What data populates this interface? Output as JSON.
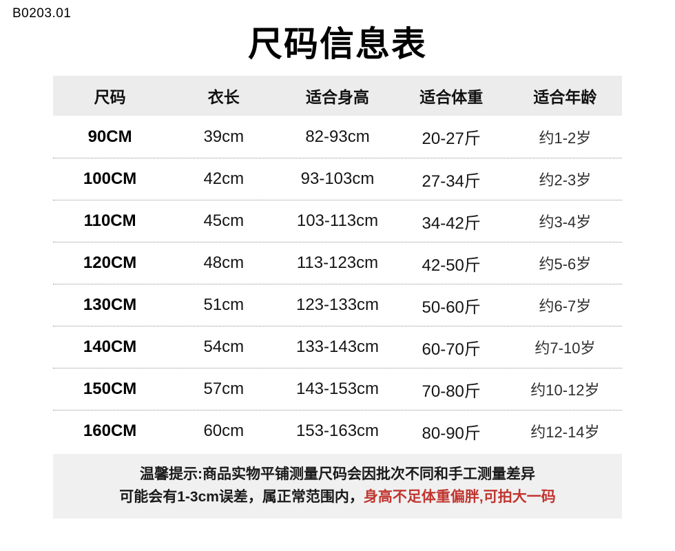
{
  "page": {
    "code": "B0203.01",
    "title": "尺码信息表"
  },
  "table": {
    "headers": [
      "尺码",
      "衣长",
      "适合身高",
      "适合体重",
      "适合年龄"
    ],
    "rows": [
      [
        "90CM",
        "39cm",
        "82-93cm",
        "20-27斤",
        "约1-2岁"
      ],
      [
        "100CM",
        "42cm",
        "93-103cm",
        "27-34斤",
        "约2-3岁"
      ],
      [
        "110CM",
        "45cm",
        "103-113cm",
        "34-42斤",
        "约3-4岁"
      ],
      [
        "120CM",
        "48cm",
        "113-123cm",
        "42-50斤",
        "约5-6岁"
      ],
      [
        "130CM",
        "51cm",
        "123-133cm",
        "50-60斤",
        "约6-7岁"
      ],
      [
        "140CM",
        "54cm",
        "133-143cm",
        "60-70斤",
        "约7-10岁"
      ],
      [
        "150CM",
        "57cm",
        "143-153cm",
        "70-80斤",
        "约10-12岁"
      ],
      [
        "160CM",
        "60cm",
        "153-163cm",
        "80-90斤",
        "约12-14岁"
      ]
    ]
  },
  "notice": {
    "line1": "温馨提示:商品实物平铺测量尺码会因批次不同和手工测量差异",
    "line2_black": "可能会有1-3cm误差，属正常范围内，",
    "line2_red": "身高不足体重偏胖,可拍大一码"
  },
  "colors": {
    "header_bg": "#ececec",
    "footer_bg": "#f0f0f0",
    "warning_red": "#c13530",
    "text": "#111111",
    "divider": "#8f8f8f"
  }
}
